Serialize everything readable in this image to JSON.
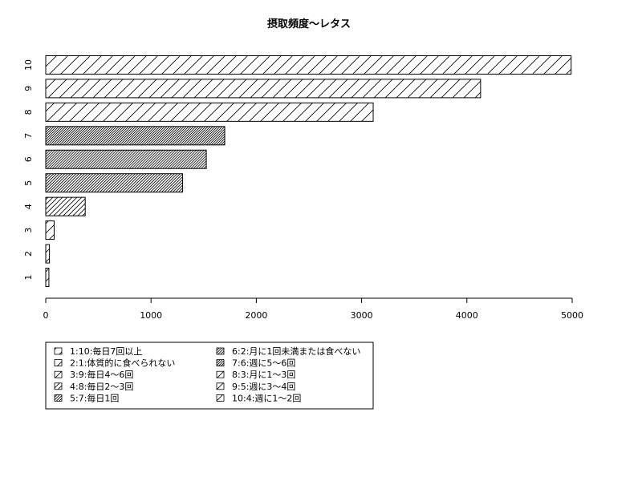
{
  "chart_data": {
    "type": "bar",
    "orientation": "horizontal",
    "title": "摂取頻度〜レタス",
    "xlabel": "",
    "ylabel": "",
    "categories": [
      "1",
      "2",
      "3",
      "4",
      "5",
      "6",
      "7",
      "8",
      "9",
      "10"
    ],
    "values": [
      30,
      35,
      80,
      375,
      1300,
      1525,
      1700,
      3110,
      4130,
      4990
    ],
    "xlim": [
      0,
      5000
    ],
    "x_ticks": [
      "0",
      "1000",
      "2000",
      "3000",
      "4000",
      "5000"
    ],
    "grid": false,
    "fill": "hatched",
    "legend": {
      "placement": "bottom-left",
      "entries": [
        "1:10:毎日7回以上",
        "2:1:体質的に食べられない",
        "3:9:毎日4〜6回",
        "4:8:毎日2〜3回",
        "5:7:毎日1回",
        "6:2:月に1回未満または食べない",
        "7:6:週に5〜6回",
        "8:3:月に1〜3回",
        "9:5:週に3〜4回",
        "10:4:週に1〜2回"
      ]
    }
  }
}
